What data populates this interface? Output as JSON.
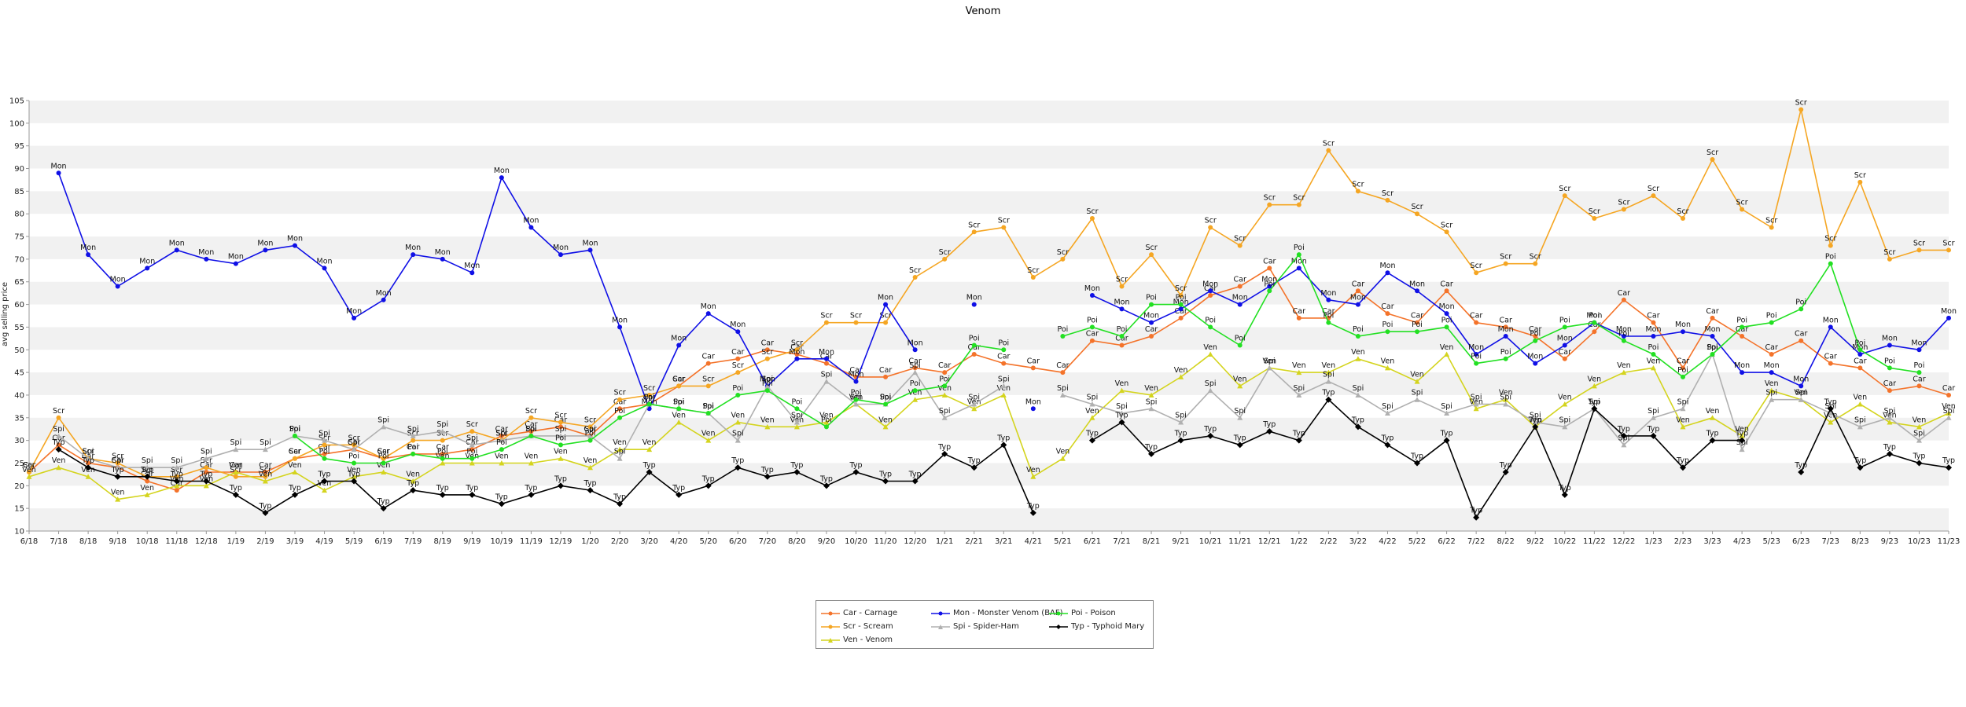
{
  "chart_data": {
    "type": "line",
    "title": "Venom",
    "ylabel": "avg selling price",
    "xlabel": "",
    "ylim": [
      10,
      105
    ],
    "yticks": [
      10,
      15,
      20,
      25,
      30,
      35,
      40,
      45,
      50,
      55,
      60,
      65,
      70,
      75,
      80,
      85,
      90,
      95,
      100,
      105
    ],
    "grid": "horizontal bands",
    "legend_position": "bottom-center",
    "categories": [
      "6/18",
      "7/18",
      "8/18",
      "9/18",
      "10/18",
      "11/18",
      "12/18",
      "1/19",
      "2/19",
      "3/19",
      "4/19",
      "5/19",
      "6/19",
      "7/19",
      "8/19",
      "9/19",
      "10/19",
      "11/19",
      "12/19",
      "1/20",
      "2/20",
      "3/20",
      "4/20",
      "5/20",
      "6/20",
      "7/20",
      "8/20",
      "9/20",
      "10/20",
      "11/20",
      "12/20",
      "1/21",
      "2/21",
      "3/21",
      "4/21",
      "5/21",
      "6/21",
      "7/21",
      "8/21",
      "9/21",
      "10/21",
      "11/21",
      "12/21",
      "1/22",
      "2/22",
      "3/22",
      "4/22",
      "5/22",
      "6/22",
      "7/22",
      "8/22",
      "9/22",
      "10/22",
      "11/22",
      "12/22",
      "1/23",
      "2/23",
      "3/23",
      "4/23",
      "5/23",
      "6/23",
      "7/23",
      "8/23",
      "9/23",
      "10/23",
      "11/23"
    ],
    "series": [
      {
        "name": "Car - Carnage",
        "short": "Car",
        "color": "#f4732a",
        "marker": "circle",
        "values": [
          23,
          29,
          25,
          24,
          21,
          19,
          23,
          23,
          23,
          26,
          27,
          28,
          26,
          27,
          27,
          28,
          31,
          32,
          33,
          31,
          37,
          38,
          42,
          47,
          48,
          50,
          49,
          47,
          44,
          44,
          46,
          45,
          49,
          47,
          46,
          45,
          52,
          51,
          53,
          57,
          62,
          64,
          68,
          57,
          57,
          63,
          58,
          56,
          63,
          56,
          55,
          53,
          48,
          54,
          61,
          56,
          46,
          57,
          53,
          49,
          52,
          47,
          46,
          41,
          42,
          40
        ]
      },
      {
        "name": "Scr - Scream",
        "short": "Scr",
        "color": "#f5a623",
        "marker": "circle",
        "values": [
          23,
          35,
          26,
          25,
          22,
          22,
          24,
          22,
          22,
          26,
          29,
          29,
          26,
          30,
          30,
          32,
          30,
          35,
          34,
          33,
          39,
          40,
          42,
          42,
          45,
          48,
          50,
          56,
          56,
          56,
          66,
          70,
          76,
          77,
          66,
          70,
          79,
          64,
          71,
          62,
          77,
          73,
          82,
          82,
          94,
          85,
          83,
          80,
          76,
          67,
          69,
          69,
          84,
          79,
          81,
          84,
          79,
          92,
          81,
          77,
          103,
          73,
          87,
          70,
          72,
          72
        ]
      },
      {
        "name": "Ven - Venom",
        "short": "Ven",
        "color": "#d4d41e",
        "marker": "triangle",
        "values": [
          22,
          24,
          22,
          17,
          18,
          20,
          20,
          23,
          21,
          23,
          19,
          22,
          23,
          21,
          25,
          25,
          25,
          25,
          26,
          24,
          28,
          28,
          34,
          30,
          34,
          33,
          33,
          34,
          38,
          33,
          39,
          40,
          37,
          40,
          22,
          26,
          35,
          41,
          40,
          44,
          49,
          42,
          46,
          45,
          45,
          48,
          46,
          43,
          49,
          37,
          39,
          33,
          38,
          42,
          45,
          46,
          33,
          35,
          31,
          41,
          39,
          34,
          38,
          34,
          33,
          36
        ]
      },
      {
        "name": "Mon - Monster Venom (BAF)",
        "short": "Mon",
        "color": "#1010e6",
        "marker": "circle",
        "values": [
          null,
          89,
          71,
          64,
          68,
          72,
          70,
          69,
          72,
          73,
          68,
          57,
          61,
          71,
          70,
          67,
          88,
          77,
          71,
          72,
          55,
          37,
          51,
          58,
          54,
          42,
          48,
          48,
          43,
          60,
          50,
          null,
          60,
          null,
          37,
          null,
          62,
          59,
          56,
          59,
          63,
          60,
          64,
          68,
          61,
          60,
          67,
          63,
          58,
          49,
          53,
          47,
          51,
          56,
          53,
          53,
          54,
          53,
          45,
          45,
          42,
          55,
          49,
          51,
          50,
          57
        ]
      },
      {
        "name": "Spi - Spider-Ham",
        "short": "Spi",
        "color": "#b0b0b0",
        "marker": "triangle",
        "values": [
          null,
          31,
          26,
          24,
          24,
          24,
          26,
          28,
          28,
          31,
          30,
          28,
          33,
          31,
          32,
          29,
          30,
          31,
          31,
          31,
          26,
          38,
          37,
          36,
          30,
          42,
          34,
          43,
          38,
          38,
          45,
          35,
          38,
          42,
          null,
          40,
          38,
          36,
          37,
          34,
          41,
          35,
          46,
          40,
          43,
          40,
          36,
          39,
          36,
          38,
          38,
          34,
          33,
          37,
          29,
          35,
          37,
          49,
          28,
          39,
          39,
          36,
          33,
          35,
          30,
          35
        ]
      },
      {
        "name": "Poi - Poison",
        "short": "Poi",
        "color": "#22e022",
        "marker": "circle",
        "values": [
          null,
          null,
          null,
          null,
          null,
          null,
          null,
          null,
          null,
          31,
          26,
          25,
          25,
          27,
          26,
          26,
          28,
          31,
          29,
          30,
          35,
          38,
          37,
          36,
          40,
          41,
          37,
          33,
          39,
          38,
          41,
          42,
          51,
          50,
          null,
          53,
          55,
          53,
          60,
          60,
          55,
          51,
          63,
          71,
          56,
          53,
          54,
          54,
          55,
          47,
          48,
          52,
          55,
          56,
          52,
          49,
          44,
          49,
          55,
          56,
          59,
          69,
          50,
          46,
          45,
          null
        ]
      },
      {
        "name": "Typ - Typhoid Mary",
        "short": "Typ",
        "color": "#000000",
        "marker": "diamond",
        "values": [
          null,
          28,
          24,
          22,
          22,
          21,
          21,
          18,
          14,
          18,
          21,
          21,
          15,
          19,
          18,
          18,
          16,
          18,
          20,
          19,
          16,
          23,
          18,
          20,
          24,
          22,
          23,
          20,
          23,
          21,
          21,
          27,
          24,
          29,
          14,
          null,
          30,
          34,
          27,
          30,
          31,
          29,
          32,
          30,
          39,
          33,
          29,
          25,
          30,
          13,
          23,
          33,
          18,
          37,
          31,
          31,
          24,
          30,
          30,
          null,
          23,
          37,
          24,
          27,
          25,
          24
        ]
      }
    ]
  }
}
